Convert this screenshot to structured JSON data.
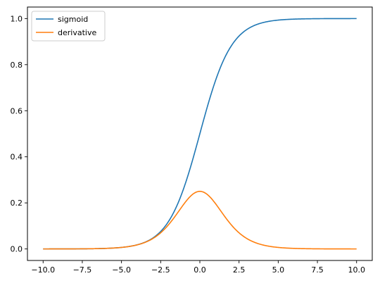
{
  "chart_data": {
    "type": "line",
    "title": "",
    "xlabel": "",
    "ylabel": "",
    "xlim": [
      -11.0,
      11.0
    ],
    "ylim": [
      -0.05,
      1.05
    ],
    "grid": false,
    "legend_position": "top-left",
    "x_ticks": [
      -10.0,
      -7.5,
      -5.0,
      -2.5,
      0.0,
      2.5,
      5.0,
      7.5,
      10.0
    ],
    "x_tick_labels": [
      "−10.0",
      "−7.5",
      "−5.0",
      "−2.5",
      "0.0",
      "2.5",
      "5.0",
      "7.5",
      "10.0"
    ],
    "y_ticks": [
      0.0,
      0.2,
      0.4,
      0.6,
      0.8,
      1.0
    ],
    "y_tick_labels": [
      "0.0",
      "0.2",
      "0.4",
      "0.6",
      "0.8",
      "1.0"
    ],
    "x": [
      -10,
      -9,
      -8,
      -7,
      -6,
      -5,
      -4,
      -3,
      -2.5,
      -2,
      -1.5,
      -1,
      -0.5,
      0,
      0.5,
      1,
      1.5,
      2,
      2.5,
      3,
      4,
      5,
      6,
      7,
      8,
      9,
      10
    ],
    "series": [
      {
        "name": "sigmoid",
        "color": "#1f77b4",
        "values": [
          5e-05,
          0.00012,
          0.00034,
          0.00091,
          0.00247,
          0.00669,
          0.01799,
          0.04743,
          0.07586,
          0.1192,
          0.18243,
          0.26894,
          0.37754,
          0.5,
          0.62246,
          0.73106,
          0.81757,
          0.8808,
          0.92414,
          0.95257,
          0.98201,
          0.99331,
          0.99753,
          0.99909,
          0.99966,
          0.99988,
          0.99995
        ]
      },
      {
        "name": "derivative",
        "color": "#ff7f0e",
        "values": [
          5e-05,
          0.00012,
          0.00034,
          0.00091,
          0.00247,
          0.00665,
          0.01766,
          0.04518,
          0.07011,
          0.10499,
          0.14915,
          0.19661,
          0.235,
          0.25,
          0.235,
          0.19661,
          0.14915,
          0.10499,
          0.07011,
          0.04518,
          0.01766,
          0.00665,
          0.00247,
          0.00091,
          0.00034,
          0.00012,
          5e-05
        ]
      }
    ]
  }
}
